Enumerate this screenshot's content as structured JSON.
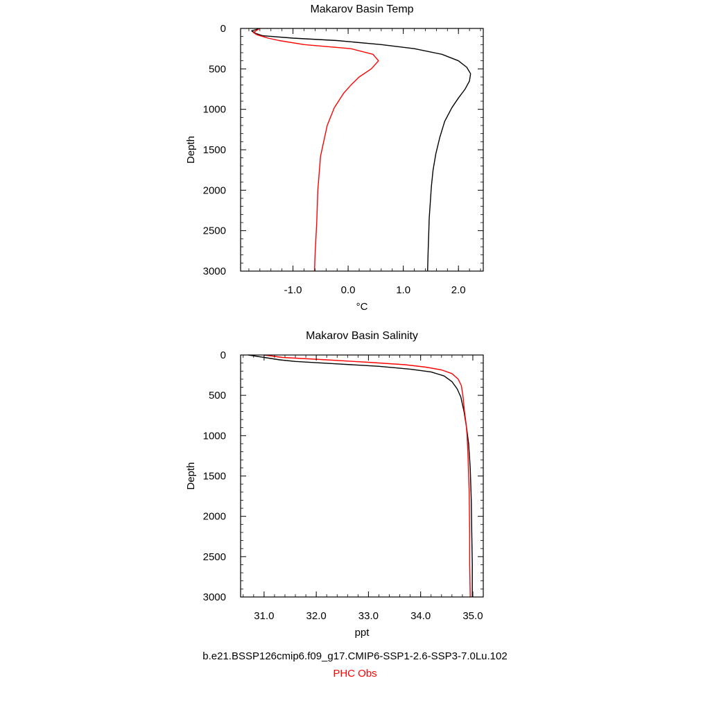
{
  "chart_data": [
    {
      "type": "line",
      "title": "Makarov Basin Temp",
      "xlabel": "°C",
      "ylabel": "Depth",
      "xlim": [
        -1.95,
        2.45
      ],
      "ylim": [
        3000,
        0
      ],
      "y_inverted": true,
      "xticks": [
        -1.0,
        0.0,
        1.0,
        2.0
      ],
      "xtick_labels": [
        "-1.0",
        "0.0",
        "1.0",
        "2.0"
      ],
      "yticks": [
        0,
        500,
        1000,
        1500,
        2000,
        2500,
        3000
      ],
      "ytick_labels": [
        "0",
        "500",
        "1000",
        "1500",
        "2000",
        "2500",
        "3000"
      ],
      "grid": false,
      "series": [
        {
          "name": "b.e21.BSSP126cmip6.f09_g17.CMIP6-SSP1-2.6-SSP3-7.0Lu.102",
          "color": "#000000",
          "points": [
            [
              -1.6,
              0
            ],
            [
              -1.75,
              30
            ],
            [
              -1.68,
              60
            ],
            [
              -1.55,
              90
            ],
            [
              -1.0,
              120
            ],
            [
              -0.2,
              150
            ],
            [
              0.6,
              200
            ],
            [
              1.2,
              250
            ],
            [
              1.7,
              320
            ],
            [
              2.0,
              400
            ],
            [
              2.15,
              480
            ],
            [
              2.22,
              560
            ],
            [
              2.2,
              650
            ],
            [
              2.12,
              750
            ],
            [
              2.0,
              860
            ],
            [
              1.88,
              980
            ],
            [
              1.75,
              1150
            ],
            [
              1.66,
              1350
            ],
            [
              1.59,
              1550
            ],
            [
              1.54,
              1750
            ],
            [
              1.51,
              1950
            ],
            [
              1.49,
              2150
            ],
            [
              1.47,
              2350
            ],
            [
              1.46,
              2550
            ],
            [
              1.45,
              2750
            ],
            [
              1.44,
              3000
            ]
          ]
        },
        {
          "name": "PHC Obs",
          "color": "#ff0000",
          "points": [
            [
              -1.6,
              0
            ],
            [
              -1.72,
              50
            ],
            [
              -1.65,
              80
            ],
            [
              -1.45,
              120
            ],
            [
              -1.25,
              150
            ],
            [
              -0.8,
              200
            ],
            [
              0.05,
              250
            ],
            [
              0.45,
              320
            ],
            [
              0.55,
              400
            ],
            [
              0.42,
              500
            ],
            [
              0.2,
              600
            ],
            [
              0.05,
              700
            ],
            [
              -0.08,
              800
            ],
            [
              -0.25,
              980
            ],
            [
              -0.38,
              1200
            ],
            [
              -0.5,
              1580
            ],
            [
              -0.55,
              2000
            ],
            [
              -0.57,
              2400
            ],
            [
              -0.6,
              2800
            ],
            [
              -0.61,
              3000
            ]
          ]
        }
      ]
    },
    {
      "type": "line",
      "title": "Makarov Basin Salinity",
      "xlabel": "ppt",
      "ylabel": "Depth",
      "xlim": [
        30.55,
        35.2
      ],
      "ylim": [
        3000,
        0
      ],
      "y_inverted": true,
      "xticks": [
        31.0,
        32.0,
        33.0,
        34.0,
        35.0
      ],
      "xtick_labels": [
        "31.0",
        "32.0",
        "33.0",
        "34.0",
        "35.0"
      ],
      "yticks": [
        0,
        500,
        1000,
        1500,
        2000,
        2500,
        3000
      ],
      "ytick_labels": [
        "0",
        "500",
        "1000",
        "1500",
        "2000",
        "2500",
        "3000"
      ],
      "grid": false,
      "series": [
        {
          "name": "b.e21.BSSP126cmip6.f09_g17.CMIP6-SSP1-2.6-SSP3-7.0Lu.102",
          "color": "#000000",
          "points": [
            [
              30.7,
              0
            ],
            [
              30.95,
              25
            ],
            [
              31.3,
              60
            ],
            [
              31.6,
              80
            ],
            [
              32.4,
              110
            ],
            [
              33.2,
              140
            ],
            [
              33.8,
              175
            ],
            [
              34.2,
              210
            ],
            [
              34.45,
              260
            ],
            [
              34.6,
              330
            ],
            [
              34.7,
              420
            ],
            [
              34.77,
              520
            ],
            [
              34.83,
              700
            ],
            [
              34.88,
              900
            ],
            [
              34.92,
              1100
            ],
            [
              34.95,
              1400
            ],
            [
              34.97,
              1800
            ],
            [
              34.98,
              2200
            ],
            [
              34.99,
              2600
            ],
            [
              34.99,
              3000
            ]
          ]
        },
        {
          "name": "PHC Obs",
          "color": "#ff0000",
          "points": [
            [
              31.0,
              0
            ],
            [
              31.35,
              30
            ],
            [
              32.2,
              60
            ],
            [
              33.0,
              90
            ],
            [
              33.7,
              120
            ],
            [
              34.1,
              150
            ],
            [
              34.4,
              185
            ],
            [
              34.6,
              230
            ],
            [
              34.72,
              300
            ],
            [
              34.78,
              380
            ],
            [
              34.81,
              500
            ],
            [
              34.84,
              700
            ],
            [
              34.87,
              850
            ],
            [
              34.89,
              1000
            ],
            [
              34.91,
              1300
            ],
            [
              34.93,
              1700
            ],
            [
              34.94,
              2200
            ],
            [
              34.94,
              2600
            ],
            [
              34.95,
              3000
            ]
          ]
        }
      ]
    }
  ],
  "legend": {
    "case_label": "b.e21.BSSP126cmip6.f09_g17.CMIP6-SSP1-2.6-SSP3-7.0Lu.102",
    "obs_label": "PHC Obs",
    "case_color": "#000000",
    "obs_color": "#ff0000"
  }
}
